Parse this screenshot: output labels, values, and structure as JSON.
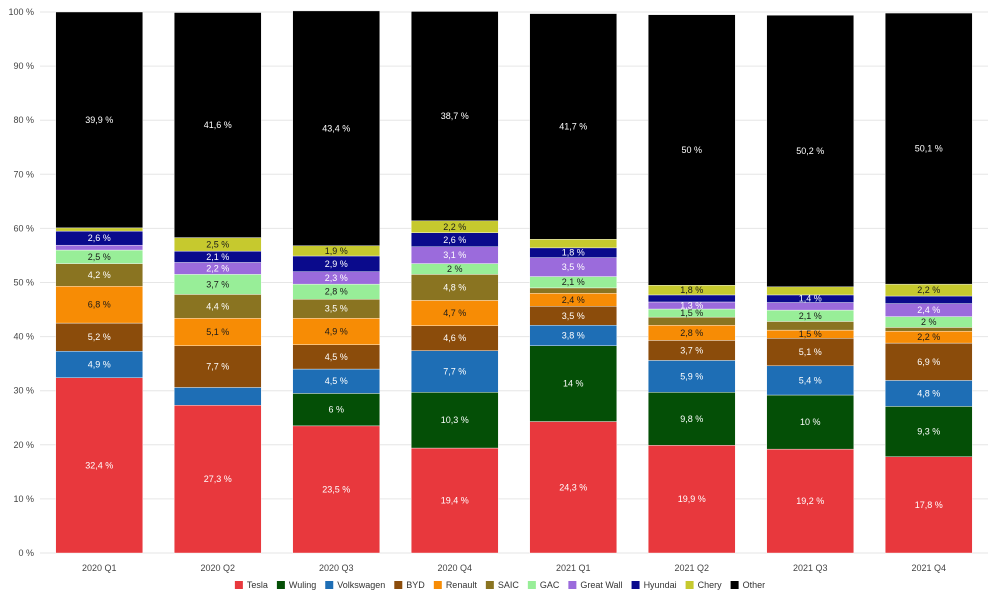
{
  "chart_data": {
    "type": "bar",
    "stacked": true,
    "percent": true,
    "categories": [
      "2020 Q1",
      "2020 Q2",
      "2020 Q3",
      "2020 Q4",
      "2021 Q1",
      "2021 Q2",
      "2021 Q3",
      "2021 Q4"
    ],
    "series": [
      {
        "name": "Tesla",
        "color": "#e8383d",
        "values": [
          32.4,
          27.3,
          23.5,
          19.4,
          24.3,
          19.9,
          19.2,
          17.8
        ],
        "labels": [
          "32,4 %",
          "27,3 %",
          "23,5 %",
          "19,4 %",
          "24,3 %",
          "19,9 %",
          "19,2 %",
          "17,8 %"
        ]
      },
      {
        "name": "Wuling",
        "color": "#044f06",
        "values": [
          0,
          0,
          6,
          10.3,
          14,
          9.8,
          10,
          9.3
        ],
        "labels": [
          "0 %",
          "0 %",
          "6 %",
          "10,3 %",
          "14 %",
          "9,8 %",
          "10 %",
          "9,3 %"
        ]
      },
      {
        "name": "Volkswagen",
        "color": "#1e6eb5",
        "values": [
          4.9,
          3.3,
          4.5,
          7.7,
          3.8,
          5.9,
          5.4,
          4.8
        ],
        "labels": [
          "4,9 %",
          "",
          "4,5 %",
          "7,7 %",
          "3,8 %",
          "5,9 %",
          "5,4 %",
          "4,8 %"
        ]
      },
      {
        "name": "BYD",
        "color": "#8b4c0b",
        "values": [
          5.2,
          7.7,
          4.5,
          4.6,
          3.5,
          3.7,
          5.1,
          6.9
        ],
        "labels": [
          "5,2 %",
          "7,7 %",
          "4,5 %",
          "4,6 %",
          "3,5 %",
          "3,7 %",
          "5,1 %",
          "6,9 %"
        ]
      },
      {
        "name": "Renault",
        "color": "#f78c05",
        "values": [
          6.8,
          5.1,
          4.9,
          4.7,
          2.4,
          2.8,
          1.5,
          2.2
        ],
        "labels": [
          "6,8 %",
          "5,1 %",
          "4,9 %",
          "4,7 %",
          "2,4 %",
          "2,8 %",
          "1,5 %",
          "2,2 %"
        ]
      },
      {
        "name": "SAIC",
        "color": "#8a7421",
        "values": [
          4.2,
          4.4,
          3.5,
          4.8,
          1.0,
          1.5,
          1.6,
          0.7
        ],
        "labels": [
          "4,2 %",
          "4,4 %",
          "3,5 %",
          "4,8 %",
          "",
          "",
          "",
          ""
        ]
      },
      {
        "name": "GAC",
        "color": "#98ee98",
        "values": [
          2.5,
          3.7,
          2.8,
          2.0,
          2.1,
          1.5,
          2.1,
          2.0
        ],
        "labels": [
          "2,5 %",
          "3,7 %",
          "2,8 %",
          "2 %",
          "2,1 %",
          "1,5 %",
          "2,1 %",
          "2 %"
        ]
      },
      {
        "name": "Great Wall",
        "color": "#9b6bdc",
        "values": [
          0.9,
          2.2,
          2.3,
          3.1,
          3.5,
          1.3,
          1.4,
          2.4
        ],
        "labels": [
          "",
          "2,2 %",
          "2,3 %",
          "3,1 %",
          "3,5 %",
          "1,3 %",
          "",
          "2,4 %"
        ]
      },
      {
        "name": "Hyundai",
        "color": "#0a0a8c",
        "values": [
          2.6,
          2.1,
          2.9,
          2.6,
          1.8,
          1.3,
          1.4,
          1.4
        ],
        "labels": [
          "2,6 %",
          "2,1 %",
          "2,9 %",
          "2,6 %",
          "1,8 %",
          "",
          "1,4 %",
          ""
        ]
      },
      {
        "name": "Chery",
        "color": "#c6c92e",
        "values": [
          0.6,
          2.5,
          1.9,
          2.2,
          1.6,
          1.8,
          1.5,
          2.2
        ],
        "labels": [
          "",
          "2,5 %",
          "1,9 %",
          "2,2 %",
          "",
          "1,8 %",
          "",
          "2,2 %"
        ]
      },
      {
        "name": "Other",
        "color": "#000000",
        "values": [
          39.9,
          41.6,
          43.4,
          38.7,
          41.7,
          50,
          50.2,
          50.1
        ],
        "labels": [
          "39,9 %",
          "41,6 %",
          "43,4 %",
          "38,7 %",
          "41,7 %",
          "50 %",
          "50,2 %",
          "50,1 %"
        ]
      }
    ],
    "ylim": [
      0,
      100
    ],
    "yticks": [
      "0 %",
      "10 %",
      "20 %",
      "30 %",
      "40 %",
      "50 %",
      "60 %",
      "70 %",
      "80 %",
      "90 %",
      "100 %"
    ],
    "grid": true,
    "legend_position": "bottom",
    "title": "",
    "xlabel": "",
    "ylabel": ""
  },
  "colors": {
    "background": "#ffffff",
    "grid": "#e6e6e6",
    "axis_text": "#444444"
  }
}
